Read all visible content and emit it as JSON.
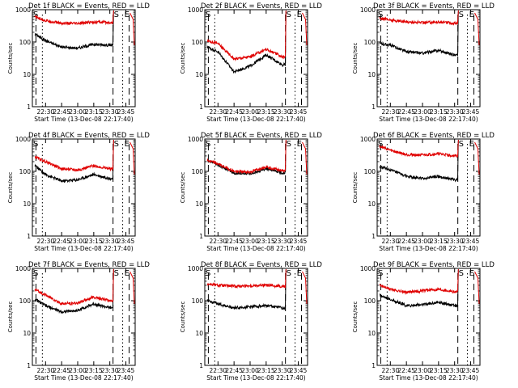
{
  "figure": {
    "x_tick_labels": [
      "22:30",
      "22:45",
      "23:00",
      "23:15",
      "23:30",
      "23:45"
    ],
    "y_tick_labels": [
      "1",
      "10",
      "100",
      "1000"
    ],
    "xlabel": "Start Time (13-Dec-08 22:17:40)",
    "ylabel": "Counts/sec",
    "markers": [
      "S",
      "E"
    ]
  },
  "colors": {
    "events": "#000000",
    "lld": "#e00000"
  },
  "chart_data": [
    {
      "type": "line",
      "title": "Det 1f BLACK = Events, RED = LLD",
      "xlabel": "Start Time (13-Dec-08 22:17:40)",
      "ylabel": "Counts/sec",
      "y_scale": "log",
      "ylim": [
        1,
        1000
      ],
      "xlim": [
        "22:17:40",
        "23:54"
      ],
      "x": [
        "22:20",
        "22:30",
        "22:45",
        "23:00",
        "23:15",
        "23:30",
        "23:32",
        "23:34"
      ],
      "series": [
        {
          "name": "Events",
          "values": [
            180,
            110,
            70,
            65,
            85,
            80,
            null,
            null
          ]
        },
        {
          "name": "LLD",
          "values": [
            600,
            460,
            380,
            370,
            420,
            400,
            null,
            null
          ]
        }
      ]
    },
    {
      "type": "line",
      "title": "Det 2f BLACK = Events, RED = LLD",
      "xlabel": "Start Time (13-Dec-08 22:17:40)",
      "ylabel": "Counts/sec",
      "y_scale": "log",
      "ylim": [
        1,
        1000
      ],
      "xlim": [
        "22:17:40",
        "23:54"
      ],
      "x": [
        "22:20",
        "22:30",
        "22:45",
        "23:00",
        "23:15",
        "23:30",
        "23:32",
        "23:34"
      ],
      "series": [
        {
          "name": "Events",
          "values": [
            70,
            50,
            12,
            18,
            40,
            20,
            null,
            null
          ]
        },
        {
          "name": "LLD",
          "values": [
            110,
            90,
            30,
            35,
            60,
            35,
            null,
            null
          ]
        }
      ]
    },
    {
      "type": "line",
      "title": "Det 3f BLACK = Events, RED = LLD",
      "xlabel": "Start Time (13-Dec-08 22:17:40)",
      "ylabel": "Counts/sec",
      "y_scale": "log",
      "ylim": [
        1,
        1000
      ],
      "xlim": [
        "22:17:40",
        "23:54"
      ],
      "x": [
        "22:20",
        "22:30",
        "22:45",
        "23:00",
        "23:15",
        "23:30",
        "23:32",
        "23:34"
      ],
      "series": [
        {
          "name": "Events",
          "values": [
            90,
            80,
            50,
            45,
            55,
            40,
            null,
            null
          ]
        },
        {
          "name": "LLD",
          "values": [
            550,
            480,
            420,
            400,
            420,
            380,
            null,
            null
          ]
        }
      ]
    },
    {
      "type": "line",
      "title": "Det 4f BLACK = Events, RED = LLD",
      "xlabel": "Start Time (13-Dec-08 22:17:40)",
      "ylabel": "Counts/sec",
      "y_scale": "log",
      "ylim": [
        1,
        1000
      ],
      "xlim": [
        "22:17:40",
        "23:54"
      ],
      "x": [
        "22:20",
        "22:30",
        "22:45",
        "23:00",
        "23:15",
        "23:30",
        "23:32",
        "23:34"
      ],
      "series": [
        {
          "name": "Events",
          "values": [
            150,
            80,
            50,
            55,
            80,
            60,
            null,
            null
          ]
        },
        {
          "name": "LLD",
          "values": [
            280,
            200,
            120,
            110,
            150,
            120,
            null,
            null
          ]
        }
      ]
    },
    {
      "type": "line",
      "title": "Det 5f BLACK = Events, RED = LLD",
      "xlabel": "Start Time (13-Dec-08 22:17:40)",
      "ylabel": "Counts/sec",
      "y_scale": "log",
      "ylim": [
        1,
        1000
      ],
      "xlim": [
        "22:17:40",
        "23:54"
      ],
      "x": [
        "22:20",
        "22:30",
        "22:45",
        "23:00",
        "23:15",
        "23:30",
        "23:32",
        "23:34"
      ],
      "series": [
        {
          "name": "Events",
          "values": [
            210,
            160,
            90,
            85,
            120,
            90,
            null,
            null
          ]
        },
        {
          "name": "LLD",
          "values": [
            220,
            170,
            100,
            95,
            140,
            105,
            null,
            null
          ]
        }
      ]
    },
    {
      "type": "line",
      "title": "Det 6f BLACK = Events, RED = LLD",
      "xlabel": "Start Time (13-Dec-08 22:17:40)",
      "ylabel": "Counts/sec",
      "y_scale": "log",
      "ylim": [
        1,
        1000
      ],
      "xlim": [
        "22:17:40",
        "23:54"
      ],
      "x": [
        "22:20",
        "22:30",
        "22:45",
        "23:00",
        "23:15",
        "23:30",
        "23:32",
        "23:34"
      ],
      "series": [
        {
          "name": "Events",
          "values": [
            140,
            110,
            70,
            60,
            70,
            55,
            null,
            null
          ]
        },
        {
          "name": "LLD",
          "values": [
            600,
            450,
            330,
            320,
            350,
            300,
            null,
            null
          ]
        }
      ]
    },
    {
      "type": "line",
      "title": "Det 7f BLACK = Events, RED = LLD",
      "xlabel": "Start Time (13-Dec-08 22:17:40)",
      "ylabel": "Counts/sec",
      "y_scale": "log",
      "ylim": [
        1,
        1000
      ],
      "xlim": [
        "22:17:40",
        "23:54"
      ],
      "x": [
        "22:20",
        "22:30",
        "22:45",
        "23:00",
        "23:15",
        "23:30",
        "23:32",
        "23:34"
      ],
      "series": [
        {
          "name": "Events",
          "values": [
            110,
            70,
            45,
            50,
            80,
            60,
            null,
            null
          ]
        },
        {
          "name": "LLD",
          "values": [
            220,
            150,
            80,
            85,
            130,
            100,
            null,
            null
          ]
        }
      ]
    },
    {
      "type": "line",
      "title": "Det 8f BLACK = Events, RED = LLD",
      "xlabel": "Start Time (13-Dec-08 22:17:40)",
      "ylabel": "Counts/sec",
      "y_scale": "log",
      "ylim": [
        1,
        1000
      ],
      "xlim": [
        "22:17:40",
        "23:54"
      ],
      "x": [
        "22:20",
        "22:30",
        "22:45",
        "23:00",
        "23:15",
        "23:30",
        "23:32",
        "23:34"
      ],
      "series": [
        {
          "name": "Events",
          "values": [
            100,
            80,
            60,
            65,
            70,
            60,
            null,
            null
          ]
        },
        {
          "name": "LLD",
          "values": [
            330,
            300,
            280,
            290,
            300,
            280,
            null,
            null
          ]
        }
      ]
    },
    {
      "type": "line",
      "title": "Det 9f BLACK = Events, RED = LLD",
      "xlabel": "Start Time (13-Dec-08 22:17:40)",
      "ylabel": "Counts/sec",
      "y_scale": "log",
      "ylim": [
        1,
        1000
      ],
      "xlim": [
        "22:17:40",
        "23:54"
      ],
      "x": [
        "22:20",
        "22:30",
        "22:45",
        "23:00",
        "23:15",
        "23:30",
        "23:32",
        "23:34"
      ],
      "series": [
        {
          "name": "Events",
          "values": [
            150,
            110,
            70,
            75,
            90,
            70,
            null,
            null
          ]
        },
        {
          "name": "LLD",
          "values": [
            300,
            230,
            180,
            200,
            230,
            190,
            null,
            null
          ]
        }
      ]
    }
  ]
}
